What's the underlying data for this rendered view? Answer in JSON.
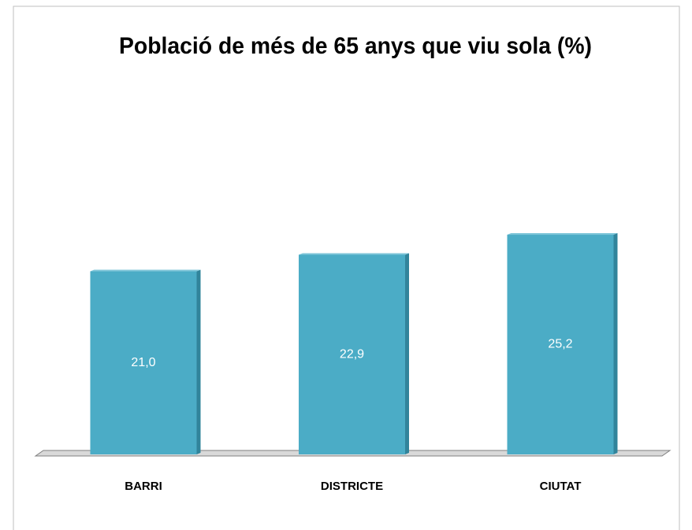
{
  "chart_data": {
    "type": "bar",
    "title": "Població de més de 65 anys que viu sola (%)",
    "categories": [
      "BARRI",
      "DISTRICTE",
      "CIUTAT"
    ],
    "values": [
      21.0,
      22.9,
      25.2
    ],
    "value_labels": [
      "21,0",
      "22,9",
      "25,2"
    ],
    "color": "#4bacc6"
  }
}
